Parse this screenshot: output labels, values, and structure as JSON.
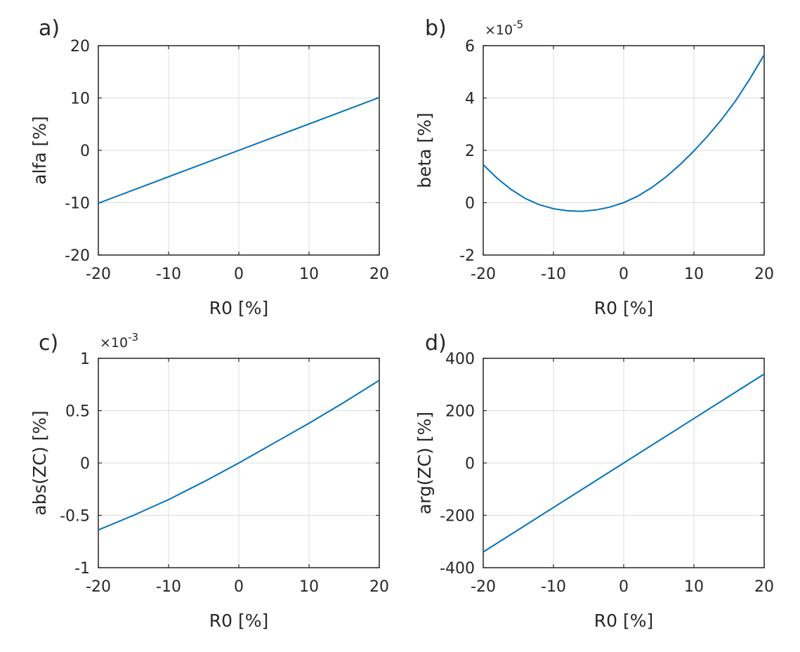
{
  "chart_data": [
    {
      "type": "line",
      "panel_label": "a)",
      "xlabel": "R0 [%]",
      "ylabel": "alfa [%]",
      "xlim": [
        -20,
        20
      ],
      "ylim": [
        -20,
        20
      ],
      "xticks": [
        -20,
        -10,
        0,
        10,
        20
      ],
      "yticks": [
        -20,
        -10,
        0,
        10,
        20
      ],
      "xtick_labels": [
        "-20",
        "-10",
        "0",
        "10",
        "20"
      ],
      "ytick_labels": [
        "-20",
        "-10",
        "0",
        "10",
        "20"
      ],
      "exponent": null,
      "grid": true,
      "series": [
        {
          "name": "alfa",
          "color": "#0072bd",
          "x": [
            -20,
            -10,
            0,
            10,
            20
          ],
          "y": [
            -10.1,
            -5.05,
            0,
            5.05,
            10.1
          ]
        }
      ]
    },
    {
      "type": "line",
      "panel_label": "b)",
      "xlabel": "R0 [%]",
      "ylabel": "beta [%]",
      "xlim": [
        -20,
        20
      ],
      "ylim": [
        -2,
        6
      ],
      "xticks": [
        -20,
        -10,
        0,
        10,
        20
      ],
      "yticks": [
        -2,
        0,
        2,
        4,
        6
      ],
      "xtick_labels": [
        "-20",
        "-10",
        "0",
        "10",
        "20"
      ],
      "ytick_labels": [
        "-2",
        "0",
        "2",
        "4",
        "6"
      ],
      "exponent": {
        "base": "×10",
        "power": "-5"
      },
      "grid": true,
      "series": [
        {
          "name": "beta",
          "color": "#0072bd",
          "x": [
            -20,
            -18,
            -16,
            -14,
            -12,
            -10,
            -8,
            -6,
            -4,
            -2,
            0,
            2,
            4,
            6,
            8,
            10,
            12,
            14,
            16,
            18,
            20
          ],
          "y": [
            1.45,
            0.93,
            0.5,
            0.16,
            -0.08,
            -0.23,
            -0.31,
            -0.33,
            -0.28,
            -0.17,
            0,
            0.25,
            0.58,
            0.98,
            1.45,
            1.98,
            2.56,
            3.2,
            3.92,
            4.75,
            5.65
          ]
        }
      ]
    },
    {
      "type": "line",
      "panel_label": "c)",
      "xlabel": "R0 [%]",
      "ylabel": "abs(ZC) [%]",
      "xlim": [
        -20,
        20
      ],
      "ylim": [
        -1,
        1
      ],
      "xticks": [
        -20,
        -10,
        0,
        10,
        20
      ],
      "yticks": [
        -1,
        -0.5,
        0,
        0.5,
        1
      ],
      "xtick_labels": [
        "-20",
        "-10",
        "0",
        "10",
        "20"
      ],
      "ytick_labels": [
        "-1",
        "-0.5",
        "0",
        "0.5",
        "1"
      ],
      "exponent": {
        "base": "×10",
        "power": "-3"
      },
      "grid": true,
      "series": [
        {
          "name": "abs(ZC)",
          "color": "#0072bd",
          "x": [
            -20,
            -15,
            -10,
            -5,
            0,
            5,
            10,
            15,
            20
          ],
          "y": [
            -0.64,
            -0.5,
            -0.35,
            -0.18,
            0,
            0.19,
            0.38,
            0.58,
            0.79
          ]
        }
      ]
    },
    {
      "type": "line",
      "panel_label": "d)",
      "xlabel": "R0 [%]",
      "ylabel": "arg(ZC) [%]",
      "xlim": [
        -20,
        20
      ],
      "ylim": [
        -400,
        400
      ],
      "xticks": [
        -20,
        -10,
        0,
        10,
        20
      ],
      "yticks": [
        -400,
        -200,
        0,
        200,
        400
      ],
      "xtick_labels": [
        "-20",
        "-10",
        "0",
        "10",
        "20"
      ],
      "ytick_labels": [
        "-400",
        "-200",
        "0",
        "200",
        "400"
      ],
      "exponent": null,
      "grid": true,
      "series": [
        {
          "name": "arg(ZC)",
          "color": "#0072bd",
          "x": [
            -20,
            -10,
            0,
            10,
            20
          ],
          "y": [
            -340,
            -170,
            0,
            170,
            340
          ]
        }
      ]
    }
  ]
}
